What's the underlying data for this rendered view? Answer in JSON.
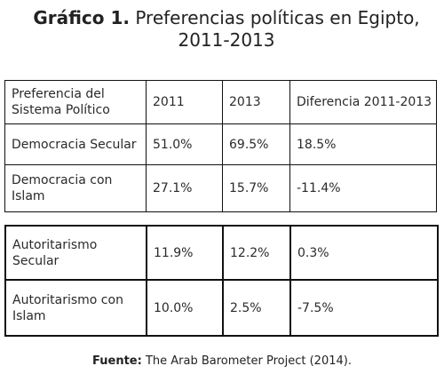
{
  "title": {
    "label": "Gráfico 1.",
    "text_line1": "Preferencias políticas en Egipto,",
    "text_line2": "2011-2013"
  },
  "table": {
    "headers": [
      "Preferencia del Sistema Político",
      "2011",
      "2013",
      "Diferencia 2011-2013"
    ],
    "rows_group1": [
      [
        "Democracia Secular",
        "51.0%",
        "69.5%",
        "18.5%"
      ],
      [
        "Democracia con Islam",
        "27.1%",
        "15.7%",
        "-11.4%"
      ]
    ],
    "rows_group2": [
      [
        "Autoritarismo Secular",
        "11.9%",
        "12.2%",
        "0.3%"
      ],
      [
        "Autoritarismo con Islam",
        "10.0%",
        "2.5%",
        "-7.5%"
      ]
    ]
  },
  "source": {
    "label": "Fuente:",
    "text": " The Arab Barometer Project (2014)."
  }
}
